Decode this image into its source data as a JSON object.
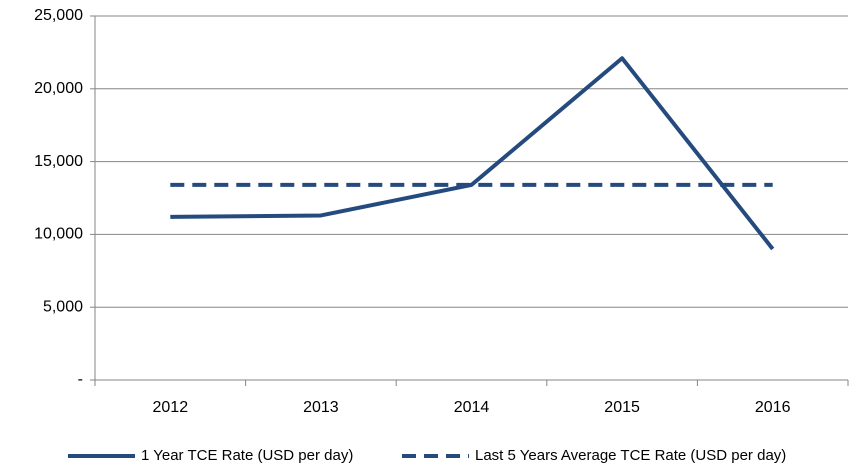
{
  "chart_data": {
    "type": "line",
    "categories": [
      "2012",
      "2013",
      "2014",
      "2015",
      "2016"
    ],
    "series": [
      {
        "name": "1 Year TCE Rate (USD per day)",
        "color": "#254b7e",
        "style": "solid",
        "values": [
          11200,
          11300,
          13400,
          22100,
          9000
        ]
      },
      {
        "name": "Last 5 Years Average TCE Rate (USD per day)",
        "color": "#254b7e",
        "style": "dashed",
        "values": [
          13400,
          13400,
          13400,
          13400,
          13400
        ]
      }
    ],
    "ylim": [
      0,
      25000
    ],
    "yticks": [
      {
        "value": 0,
        "label": "-"
      },
      {
        "value": 5000,
        "label": "5,000"
      },
      {
        "value": 10000,
        "label": "10,000"
      },
      {
        "value": 15000,
        "label": "15,000"
      },
      {
        "value": 20000,
        "label": "20,000"
      },
      {
        "value": 25000,
        "label": "25,000"
      }
    ],
    "grid": true,
    "legend": "bottom"
  }
}
